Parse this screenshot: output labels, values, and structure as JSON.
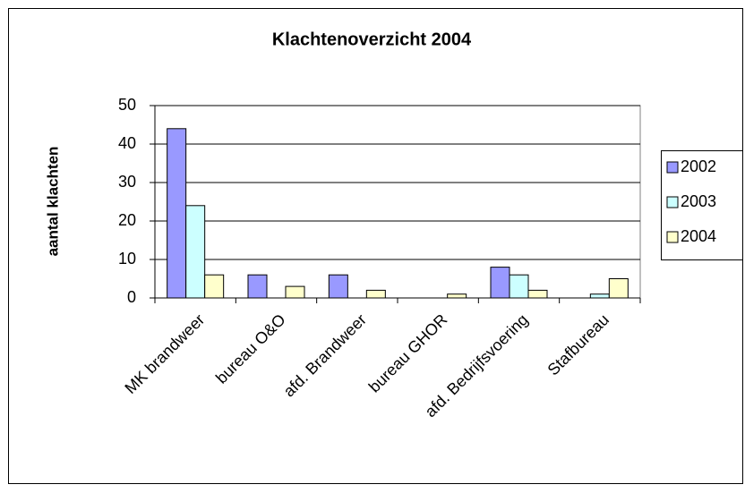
{
  "chart_data": {
    "type": "bar",
    "title": "Klachtenoverzicht 2004",
    "y_label": "aantal klachten",
    "categories": [
      "MK brandweer",
      "bureau O&O",
      "afd. Brandweer",
      "bureau GHOR",
      "afd. Bedrijfsvoering",
      "Stafbureau"
    ],
    "series": [
      {
        "name": "2002",
        "color": "#9999ff",
        "values": [
          44,
          6,
          6,
          0,
          8,
          0
        ]
      },
      {
        "name": "2003",
        "color": "#ccffff",
        "values": [
          24,
          0,
          0,
          0,
          6,
          1
        ]
      },
      {
        "name": "2004",
        "color": "#ffffcc",
        "values": [
          6,
          3,
          2,
          1,
          2,
          5
        ]
      }
    ],
    "ylim": [
      0,
      50
    ],
    "yticks": [
      0,
      10,
      20,
      30,
      40,
      50
    ],
    "grid": true,
    "legend": "right"
  }
}
